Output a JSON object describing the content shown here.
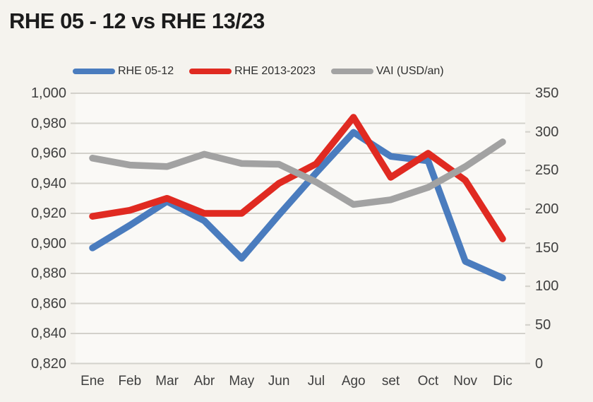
{
  "title": "RHE 05 - 12 vs RHE 13/23",
  "colors": {
    "background": "#f5f3ee",
    "plot_background": "#faf9f6",
    "gridline": "#d3d1cb",
    "axis_text": "#3f3f3f",
    "title_text": "#1c1c1c",
    "series_blue": "#4a7cbe",
    "series_red": "#e02a21",
    "series_gray": "#a2a2a2"
  },
  "legend": {
    "position": "top",
    "items": [
      {
        "label": "RHE 05-12",
        "color": "#4a7cbe"
      },
      {
        "label": "RHE 2013-2023",
        "color": "#e02a21"
      },
      {
        "label": "VAI (USD/an)",
        "color": "#a2a2a2"
      }
    ]
  },
  "chart_data": {
    "type": "line",
    "title": "RHE 05 - 12 vs RHE 13/23",
    "categories": [
      "Ene",
      "Feb",
      "Mar",
      "Abr",
      "May",
      "Jun",
      "Jul",
      "Ago",
      "set",
      "Oct",
      "Nov",
      "Dic"
    ],
    "series": [
      {
        "name": "RHE 05-12",
        "axis": "left",
        "color": "#4a7cbe",
        "values": [
          0.897,
          0.912,
          0.928,
          0.915,
          0.89,
          0.919,
          0.947,
          0.974,
          0.958,
          0.955,
          0.888,
          0.877
        ]
      },
      {
        "name": "RHE 2013-2023",
        "axis": "left",
        "color": "#e02a21",
        "values": [
          0.918,
          0.922,
          0.93,
          0.92,
          0.92,
          0.94,
          0.953,
          0.984,
          0.944,
          0.96,
          0.942,
          0.903
        ]
      },
      {
        "name": "VAI (USD/an)",
        "axis": "right",
        "color": "#a2a2a2",
        "values": [
          266,
          257,
          255,
          271,
          259,
          258,
          235,
          206,
          212,
          228,
          255,
          287
        ]
      }
    ],
    "left_axis": {
      "min": 0.82,
      "max": 1.0,
      "step": 0.02,
      "tick_labels": [
        "1,000",
        "0,980",
        "0,960",
        "0,940",
        "0,920",
        "0,900",
        "0,880",
        "0,860",
        "0,840",
        "0,820"
      ]
    },
    "right_axis": {
      "min": 0,
      "max": 350,
      "step": 50,
      "tick_labels": [
        "350",
        "300",
        "250",
        "200",
        "150",
        "100",
        "50",
        "0"
      ]
    },
    "grid": true,
    "legend_position": "top"
  }
}
